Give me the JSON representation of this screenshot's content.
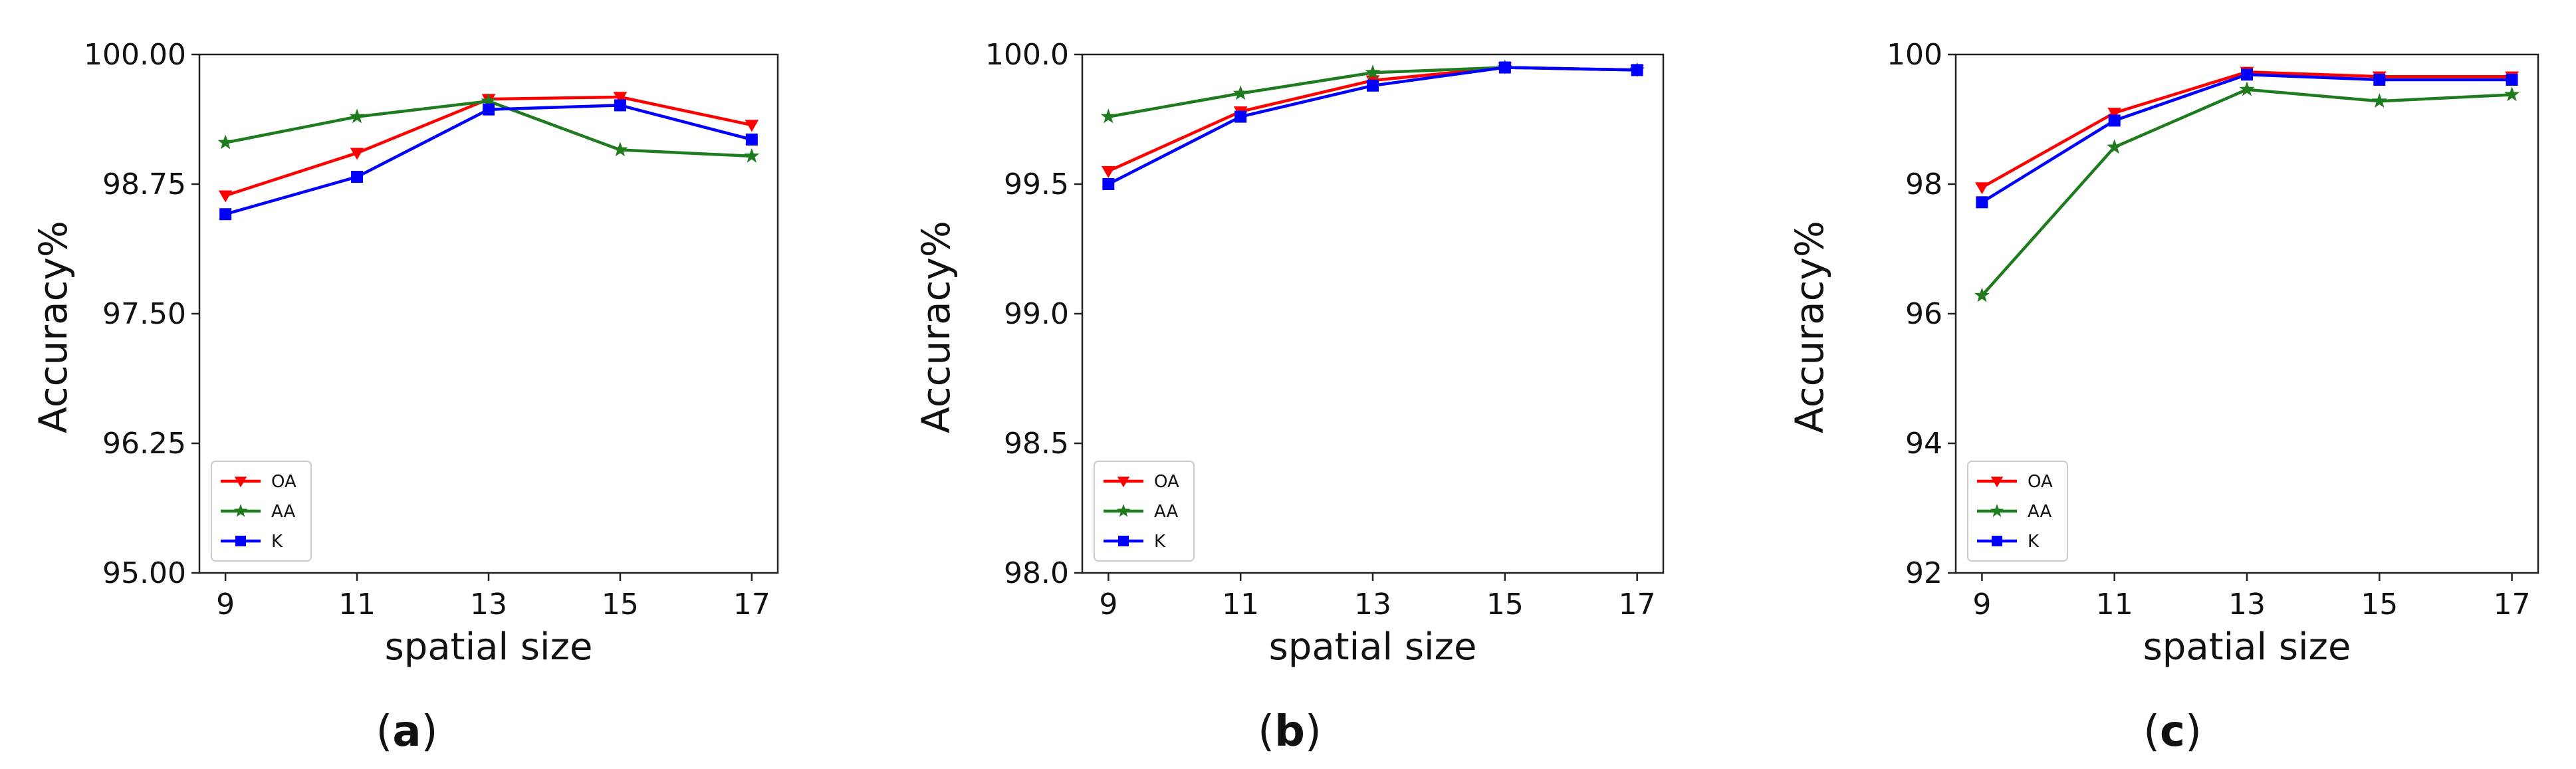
{
  "chart_data": [
    {
      "type": "line",
      "panel_label": "a",
      "xlabel": "spatial size",
      "ylabel": "Accuracy%",
      "x": [
        9,
        11,
        13,
        15,
        17
      ],
      "xticks": [
        "9",
        "11",
        "13",
        "15",
        "17"
      ],
      "ylim": [
        95,
        100
      ],
      "yticks": [
        "95.00",
        "96.25",
        "97.50",
        "98.75",
        "100.00"
      ],
      "legend_position": "lower-left",
      "series": [
        {
          "name": "OA",
          "color": "#ff0000",
          "marker": "triangle-down",
          "values": [
            98.64,
            99.05,
            99.57,
            99.59,
            99.32
          ]
        },
        {
          "name": "AA",
          "color": "#1e7b1e",
          "marker": "star",
          "values": [
            99.15,
            99.4,
            99.55,
            99.08,
            99.02
          ]
        },
        {
          "name": "K",
          "color": "#0000ff",
          "marker": "square",
          "values": [
            98.46,
            98.82,
            99.47,
            99.51,
            99.18
          ]
        }
      ]
    },
    {
      "type": "line",
      "panel_label": "b",
      "xlabel": "spatial size",
      "ylabel": "Accuracy%",
      "x": [
        9,
        11,
        13,
        15,
        17
      ],
      "xticks": [
        "9",
        "11",
        "13",
        "15",
        "17"
      ],
      "ylim": [
        98.0,
        100.0
      ],
      "yticks": [
        "98.0",
        "98.5",
        "99.0",
        "99.5",
        "100.0"
      ],
      "legend_position": "lower-left",
      "series": [
        {
          "name": "OA",
          "color": "#ff0000",
          "marker": "triangle-down",
          "values": [
            99.55,
            99.78,
            99.9,
            99.95,
            99.94
          ]
        },
        {
          "name": "AA",
          "color": "#1e7b1e",
          "marker": "star",
          "values": [
            99.76,
            99.85,
            99.93,
            99.95,
            99.94
          ]
        },
        {
          "name": "K",
          "color": "#0000ff",
          "marker": "square",
          "values": [
            99.5,
            99.76,
            99.88,
            99.95,
            99.94
          ]
        }
      ]
    },
    {
      "type": "line",
      "panel_label": "c",
      "xlabel": "spatial size",
      "ylabel": "Accuracy%",
      "x": [
        9,
        11,
        13,
        15,
        17
      ],
      "xticks": [
        "9",
        "11",
        "13",
        "15",
        "17"
      ],
      "ylim": [
        92,
        100
      ],
      "yticks": [
        "92",
        "94",
        "96",
        "98",
        "100"
      ],
      "legend_position": "lower-left",
      "series": [
        {
          "name": "OA",
          "color": "#ff0000",
          "marker": "triangle-down",
          "values": [
            97.95,
            99.1,
            99.73,
            99.66,
            99.66
          ]
        },
        {
          "name": "AA",
          "color": "#1e7b1e",
          "marker": "star",
          "values": [
            96.28,
            98.57,
            99.46,
            99.28,
            99.38
          ]
        },
        {
          "name": "K",
          "color": "#0000ff",
          "marker": "square",
          "values": [
            97.72,
            98.98,
            99.69,
            99.61,
            99.61
          ]
        }
      ]
    }
  ]
}
